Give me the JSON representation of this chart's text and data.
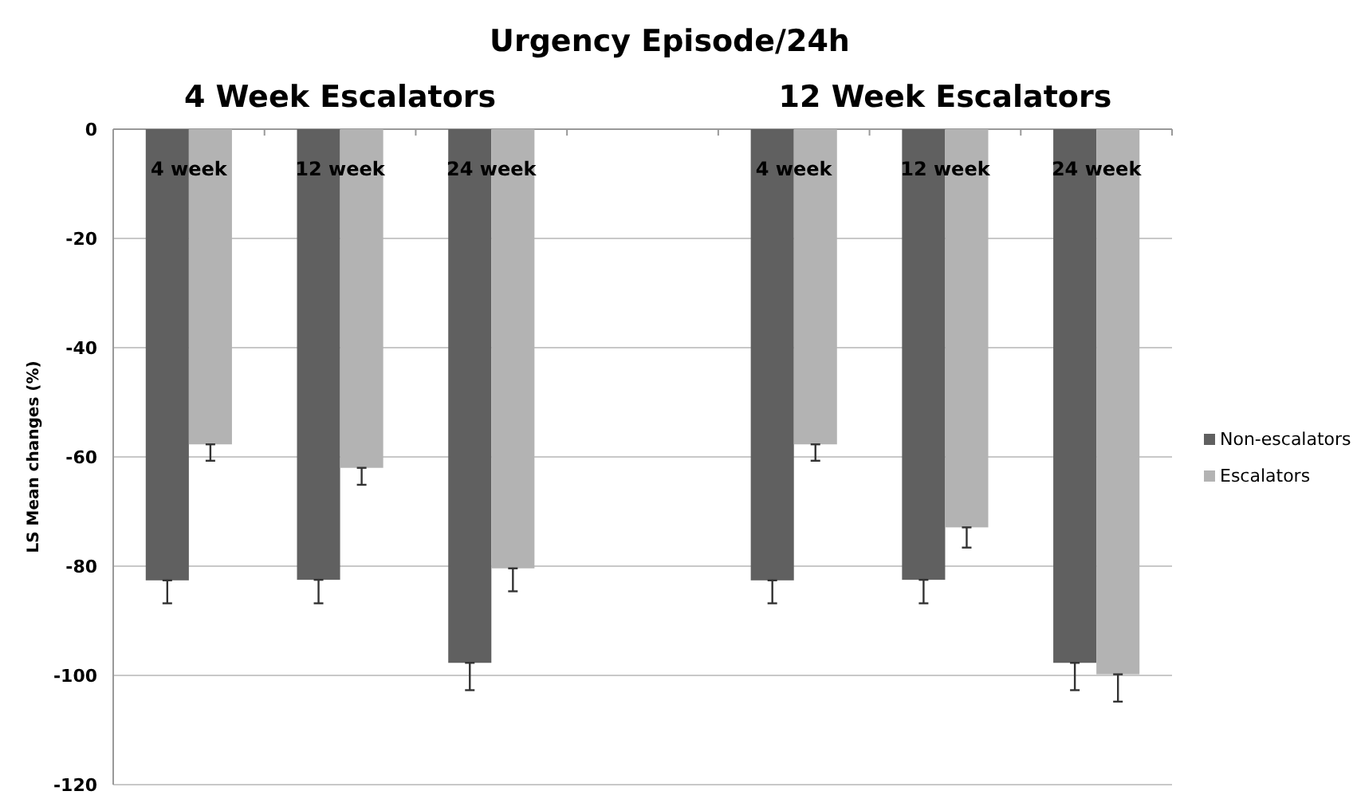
{
  "chart_data": {
    "type": "bar",
    "title": "Urgency Episode/24h",
    "ylabel": "LS Mean changes (%)",
    "annotations": [
      "4 Week Escalators",
      "12 Week Escalators"
    ],
    "categories": [
      "4 week",
      "12 week",
      "24 week",
      null,
      "4 week",
      "12 week",
      "24 week"
    ],
    "series": [
      {
        "name": "Non-escalators",
        "color": "#606060",
        "values": [
          -82.6,
          -82.5,
          -97.7,
          null,
          -82.6,
          -82.5,
          -97.7
        ],
        "errors": [
          [
            -86.8,
            -82.6
          ],
          [
            -86.8,
            -82.5
          ],
          [
            -102.7,
            -97.7
          ],
          null,
          [
            -86.8,
            -82.6
          ],
          [
            -86.8,
            -82.5
          ],
          [
            -102.7,
            -97.7
          ]
        ]
      },
      {
        "name": "Escalators",
        "color": "#b3b3b3",
        "values": [
          -57.7,
          -62.0,
          -80.4,
          null,
          -57.7,
          -72.9,
          -99.8
        ],
        "errors": [
          [
            -60.7,
            -57.7
          ],
          [
            -65.1,
            -62.0
          ],
          [
            -84.6,
            -80.4
          ],
          null,
          [
            -60.7,
            -57.7
          ],
          [
            -76.6,
            -72.9
          ],
          [
            -104.8,
            -99.8
          ]
        ]
      }
    ],
    "ylim": [
      -120,
      0
    ],
    "yticks": [
      -120,
      -100,
      -80,
      -60,
      -40,
      -20,
      0
    ],
    "grid": "y",
    "legend": "right"
  }
}
